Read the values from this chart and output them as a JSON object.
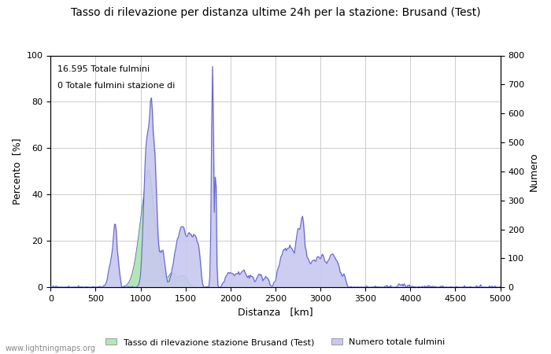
{
  "title": "Tasso di rilevazione per distanza ultime 24h per la stazione: Brusand (Test)",
  "xlabel": "Distanza   [km]",
  "ylabel_left": "Percento  [%]",
  "ylabel_right": "Numero",
  "annotation_line1": "16.595 Totale fulmini",
  "annotation_line2": "0 Totale fulmini stazione di",
  "xlim": [
    0,
    5000
  ],
  "ylim_left": [
    0,
    100
  ],
  "ylim_right": [
    0,
    800
  ],
  "xticks": [
    0,
    500,
    1000,
    1500,
    2000,
    2500,
    3000,
    3500,
    4000,
    4500,
    5000
  ],
  "yticks_left": [
    0,
    20,
    40,
    60,
    80,
    100
  ],
  "yticks_right": [
    0,
    100,
    200,
    300,
    400,
    500,
    600,
    700,
    800
  ],
  "legend_label_green": "Tasso di rilevazione stazione Brusand (Test)",
  "legend_label_blue": "Numero totale fulmini",
  "fill_color_green": "#b3e6b3",
  "fill_color_blue": "#c8c8f0",
  "line_color": "#6666cc",
  "watermark": "www.lightningmaps.org",
  "bg_color": "#ffffff",
  "grid_color": "#cccccc"
}
